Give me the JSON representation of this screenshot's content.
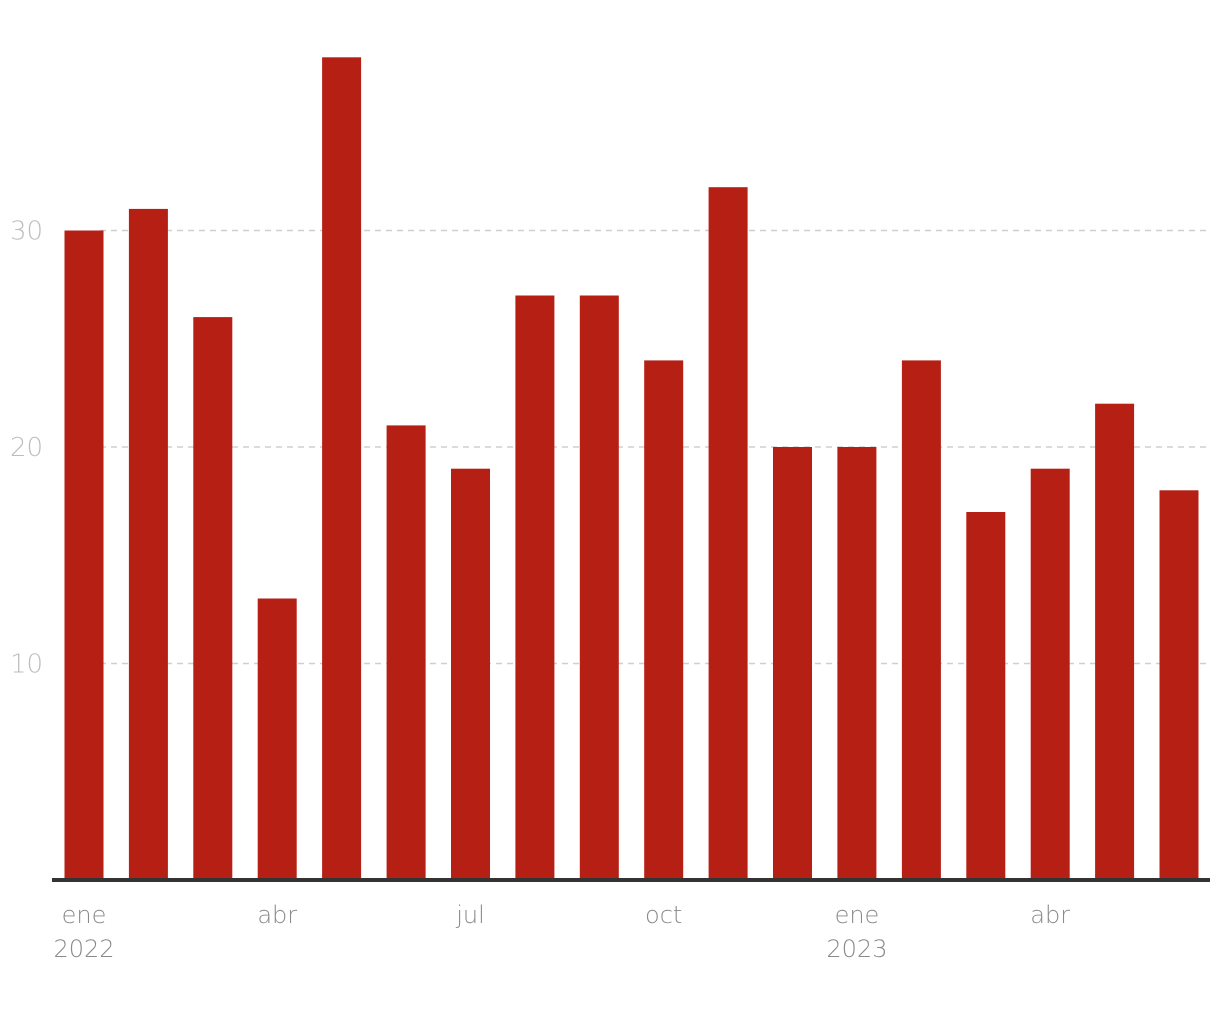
{
  "chart_data": {
    "type": "bar",
    "title": "",
    "xlabel": "",
    "ylabel": "",
    "categories": [
      "2022-01",
      "2022-02",
      "2022-03",
      "2022-04",
      "2022-05",
      "2022-06",
      "2022-07",
      "2022-08",
      "2022-09",
      "2022-10",
      "2022-11",
      "2022-12",
      "2023-01",
      "2023-02",
      "2023-03",
      "2023-04",
      "2023-05",
      "2023-06"
    ],
    "values": [
      30,
      31,
      26,
      13,
      38,
      21,
      19,
      27,
      27,
      24,
      32,
      20,
      20,
      24,
      17,
      19,
      22,
      18
    ],
    "ylim": [
      0,
      38
    ],
    "yticks": [
      10,
      20,
      30
    ],
    "xtick_labels": [
      {
        "index": 0,
        "month": "ene",
        "year": "2022"
      },
      {
        "index": 3,
        "month": "abr",
        "year": ""
      },
      {
        "index": 6,
        "month": "jul",
        "year": ""
      },
      {
        "index": 9,
        "month": "oct",
        "year": ""
      },
      {
        "index": 12,
        "month": "ene",
        "year": "2023"
      },
      {
        "index": 15,
        "month": "abr",
        "year": ""
      }
    ],
    "grid": true,
    "bar_color": "#b51f14",
    "baseline_color": "#333333"
  }
}
